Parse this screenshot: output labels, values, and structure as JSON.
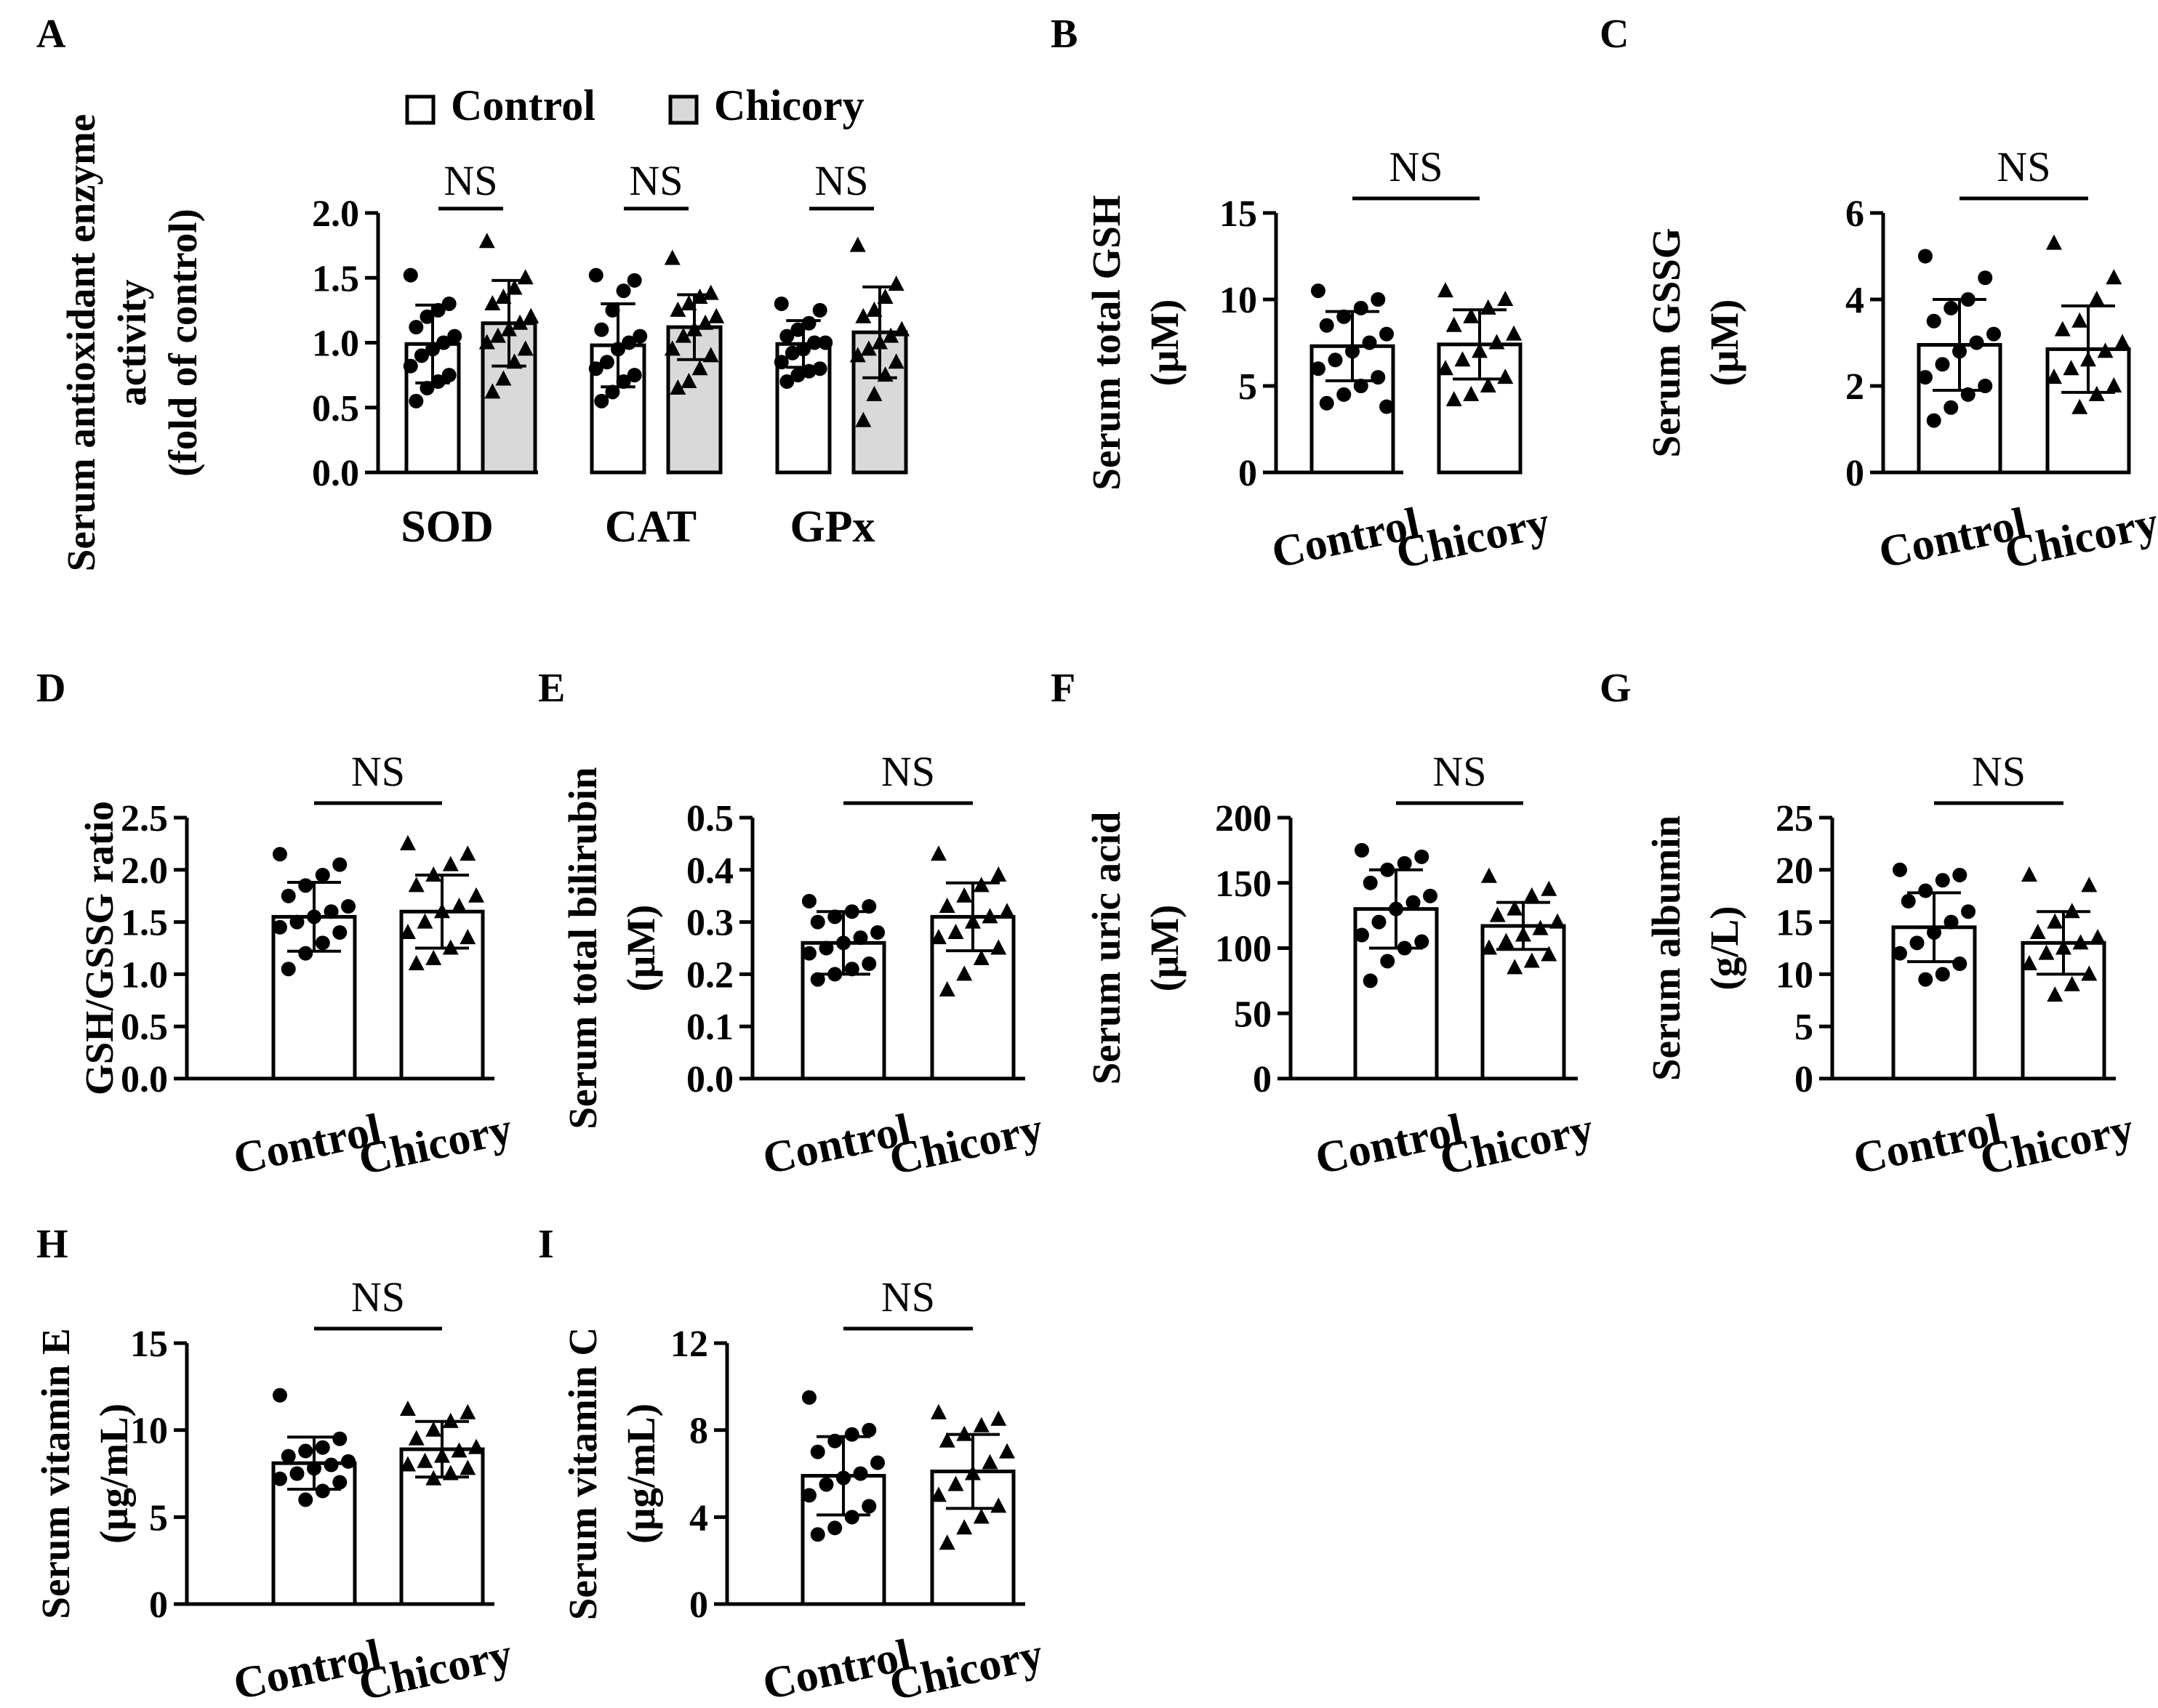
{
  "legend": {
    "control": "Control",
    "chicory": "Chicory"
  },
  "colors": {
    "control_fill": "#ffffff",
    "chicory_fill": "#d9d9d9",
    "stroke": "#000000"
  },
  "chart_data": [
    {
      "id": "A",
      "panel_label": "A",
      "type": "bar",
      "ylabel": [
        "Serum antioxidant enzyme",
        "activity",
        "(fold of control)"
      ],
      "categories": [
        "SOD",
        "CAT",
        "GPx"
      ],
      "ylim": [
        0,
        2.0
      ],
      "ticks": [
        "0.0",
        "0.5",
        "1.0",
        "1.5",
        "2.0"
      ],
      "significance": [
        "NS",
        "NS",
        "NS"
      ],
      "series": [
        {
          "name": "Control",
          "values": [
            0.99,
            0.98,
            0.99
          ],
          "sd": [
            0.3,
            0.32,
            0.18
          ],
          "points": [
            [
              1.52,
              1.3,
              1.25,
              1.2,
              1.12,
              1.05,
              1.0,
              0.95,
              0.9,
              0.82,
              0.75,
              0.7,
              0.65,
              0.55
            ],
            [
              1.52,
              1.48,
              1.4,
              1.25,
              1.1,
              1.05,
              1.0,
              0.95,
              0.85,
              0.8,
              0.75,
              0.7,
              0.62,
              0.55
            ],
            [
              1.3,
              1.25,
              1.15,
              1.1,
              1.05,
              1.0,
              1.0,
              0.95,
              0.92,
              0.85,
              0.8,
              0.78,
              0.75,
              0.7
            ]
          ]
        },
        {
          "name": "Chicory",
          "values": [
            1.15,
            1.12,
            1.08
          ],
          "sd": [
            0.33,
            0.25,
            0.35
          ],
          "points": [
            [
              1.78,
              1.5,
              1.42,
              1.35,
              1.3,
              1.2,
              1.15,
              1.1,
              1.05,
              1.0,
              0.95,
              0.85,
              0.72,
              0.62
            ],
            [
              1.65,
              1.38,
              1.35,
              1.3,
              1.25,
              1.2,
              1.15,
              1.1,
              1.05,
              0.95,
              0.9,
              0.8,
              0.7,
              0.65
            ],
            [
              1.75,
              1.45,
              1.35,
              1.25,
              1.2,
              1.1,
              1.05,
              1.0,
              0.95,
              0.9,
              0.85,
              0.75,
              0.6,
              0.4
            ]
          ]
        }
      ]
    },
    {
      "id": "B",
      "panel_label": "B",
      "type": "bar",
      "ylabel": [
        "Serum total GSH",
        "(μM)"
      ],
      "categories": [
        "Control",
        "Chicory"
      ],
      "ylim": [
        0,
        15
      ],
      "ticks": [
        "0",
        "5",
        "10",
        "15"
      ],
      "significance": "NS",
      "values": [
        7.3,
        7.4
      ],
      "sd": [
        2.0,
        2.0
      ],
      "points": [
        [
          10.5,
          10.0,
          9.5,
          9.0,
          8.5,
          8.0,
          7.5,
          7.0,
          6.5,
          6.0,
          5.5,
          5.0,
          4.5,
          4.0,
          3.8
        ],
        [
          10.5,
          10.0,
          9.5,
          9.0,
          8.5,
          8.0,
          7.5,
          7.0,
          6.5,
          6.0,
          5.5,
          5.0,
          4.5,
          4.2
        ]
      ]
    },
    {
      "id": "C",
      "panel_label": "C",
      "type": "bar",
      "ylabel": [
        "Serum GSSG",
        "(μM)"
      ],
      "categories": [
        "Control",
        "Chicory"
      ],
      "ylim": [
        0,
        6
      ],
      "ticks": [
        "0",
        "2",
        "4",
        "6"
      ],
      "significance": "NS",
      "values": [
        2.95,
        2.85
      ],
      "sd": [
        1.05,
        1.0
      ],
      "points": [
        [
          5.0,
          4.5,
          4.0,
          3.8,
          3.5,
          3.2,
          3.0,
          2.8,
          2.5,
          2.2,
          2.0,
          1.8,
          1.5,
          1.2
        ],
        [
          5.3,
          4.5,
          4.0,
          3.5,
          3.3,
          3.0,
          2.8,
          2.6,
          2.4,
          2.2,
          2.0,
          1.8,
          1.5
        ]
      ]
    },
    {
      "id": "D",
      "panel_label": "D",
      "type": "bar",
      "ylabel": [
        "GSH/GSSG ratio"
      ],
      "categories": [
        "Control",
        "Chicory"
      ],
      "ylim": [
        0,
        2.5
      ],
      "ticks": [
        "0.0",
        "0.5",
        "1.0",
        "1.5",
        "2.0",
        "2.5"
      ],
      "significance": "NS",
      "values": [
        1.55,
        1.6
      ],
      "sd": [
        0.33,
        0.35
      ],
      "points": [
        [
          2.15,
          2.05,
          1.95,
          1.85,
          1.75,
          1.65,
          1.6,
          1.55,
          1.5,
          1.45,
          1.4,
          1.3,
          1.2,
          1.05
        ],
        [
          2.25,
          2.15,
          2.05,
          1.95,
          1.85,
          1.75,
          1.65,
          1.6,
          1.5,
          1.4,
          1.35,
          1.25,
          1.15,
          1.1
        ]
      ]
    },
    {
      "id": "E",
      "panel_label": "E",
      "type": "bar",
      "ylabel": [
        "Serum total bilirubin",
        "(μM)"
      ],
      "categories": [
        "Control",
        "Chicory"
      ],
      "ylim": [
        0,
        0.5
      ],
      "ticks": [
        "0.0",
        "0.1",
        "0.2",
        "0.3",
        "0.4",
        "0.5"
      ],
      "significance": "NS",
      "values": [
        0.26,
        0.31
      ],
      "sd": [
        0.06,
        0.065
      ],
      "points": [
        [
          0.34,
          0.33,
          0.32,
          0.31,
          0.3,
          0.28,
          0.27,
          0.26,
          0.25,
          0.24,
          0.22,
          0.21,
          0.2,
          0.19
        ],
        [
          0.43,
          0.39,
          0.37,
          0.35,
          0.33,
          0.32,
          0.31,
          0.3,
          0.28,
          0.27,
          0.25,
          0.23,
          0.2,
          0.17
        ]
      ]
    },
    {
      "id": "F",
      "panel_label": "F",
      "type": "bar",
      "ylabel": [
        "Serum uric acid",
        "(μM)"
      ],
      "categories": [
        "Control",
        "Chicory"
      ],
      "ylim": [
        0,
        200
      ],
      "ticks": [
        "0",
        "50",
        "100",
        "150",
        "200"
      ],
      "significance": "NS",
      "values": [
        130,
        117
      ],
      "sd": [
        30,
        18
      ],
      "points": [
        [
          175,
          170,
          165,
          160,
          150,
          140,
          135,
          130,
          120,
          110,
          105,
          100,
          90,
          75
        ],
        [
          155,
          145,
          140,
          130,
          125,
          120,
          115,
          110,
          105,
          100,
          95,
          90,
          85
        ]
      ]
    },
    {
      "id": "G",
      "panel_label": "G",
      "type": "bar",
      "ylabel": [
        "Serum albumin",
        "(g/L)"
      ],
      "categories": [
        "Control",
        "Chicory"
      ],
      "ylim": [
        0,
        25
      ],
      "ticks": [
        "0",
        "5",
        "10",
        "15",
        "20",
        "25"
      ],
      "significance": "NS",
      "values": [
        14.5,
        13.0
      ],
      "sd": [
        3.3,
        3.0
      ],
      "points": [
        [
          20,
          19.5,
          19,
          18,
          17,
          16,
          15,
          14,
          13,
          12,
          11,
          10,
          9.5
        ],
        [
          19.5,
          18.5,
          16,
          15,
          14,
          13.5,
          13,
          12.5,
          12,
          11,
          10,
          9,
          8
        ]
      ]
    },
    {
      "id": "H",
      "panel_label": "H",
      "type": "bar",
      "ylabel": [
        "Serum vitamin E",
        "(μg/mL)"
      ],
      "categories": [
        "Control",
        "Chicory"
      ],
      "ylim": [
        0,
        15
      ],
      "ticks": [
        "0",
        "5",
        "10",
        "15"
      ],
      "significance": "NS",
      "values": [
        8.1,
        8.9
      ],
      "sd": [
        1.5,
        1.6
      ],
      "points": [
        [
          12,
          9.5,
          9,
          8.8,
          8.5,
          8.2,
          8,
          7.8,
          7.5,
          7.2,
          7,
          6.5,
          6
        ],
        [
          11.2,
          11,
          10.5,
          10,
          9.5,
          9,
          8.8,
          8.5,
          8.2,
          8,
          7.8,
          7.5,
          7.2
        ]
      ]
    },
    {
      "id": "I",
      "panel_label": "I",
      "type": "bar",
      "ylabel": [
        "Serum vitamin C",
        "(μg/mL)"
      ],
      "categories": [
        "Control",
        "Chicory"
      ],
      "ylim": [
        0,
        12
      ],
      "ticks": [
        "0",
        "4",
        "8",
        "12"
      ],
      "significance": "NS",
      "values": [
        5.9,
        6.1
      ],
      "sd": [
        1.8,
        1.7
      ],
      "points": [
        [
          9.5,
          8,
          7.8,
          7.5,
          7,
          6.5,
          6,
          5.8,
          5.5,
          5,
          4.5,
          4,
          3.5,
          3.2
        ],
        [
          8.8,
          8.5,
          8.2,
          7.8,
          7.5,
          7,
          6.5,
          6,
          5.5,
          5,
          4.5,
          4,
          3.5,
          2.8
        ]
      ]
    }
  ]
}
